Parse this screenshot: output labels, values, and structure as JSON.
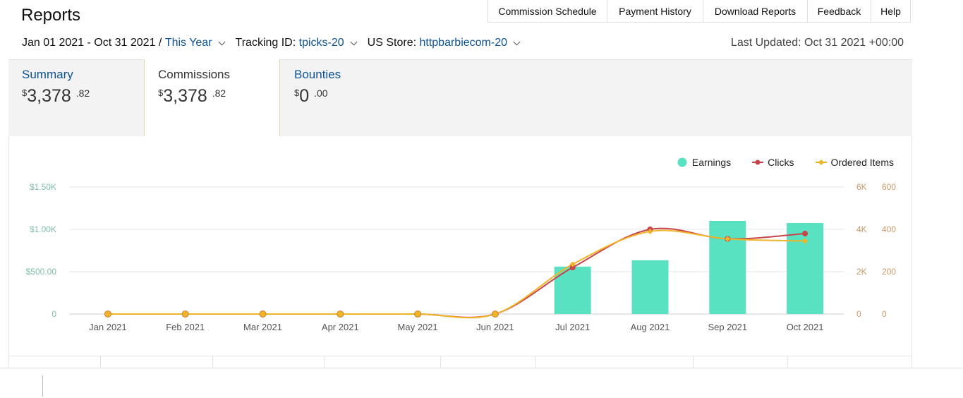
{
  "header": {
    "title": "Reports",
    "tabs": [
      "Commission Schedule",
      "Payment History",
      "Download Reports",
      "Feedback",
      "Help"
    ]
  },
  "filters": {
    "date_range": "Jan 01 2021 - Oct 31 2021 /",
    "period": "This Year",
    "tracking_label": "Tracking ID:",
    "tracking_id": "tpicks-20",
    "store_label": "US Store:",
    "store": "httpbarbiecom-20",
    "last_updated": "Last Updated: Oct 31 2021 +00:00"
  },
  "cards": [
    {
      "label": "Summary",
      "currency": "$",
      "whole": "3,378",
      "cents": ".82"
    },
    {
      "label": "Commissions",
      "currency": "$",
      "whole": "3,378",
      "cents": ".82"
    },
    {
      "label": "Bounties",
      "currency": "$",
      "whole": "0",
      "cents": ".00"
    }
  ],
  "legend": {
    "earnings": "Earnings",
    "clicks": "Clicks",
    "ordered": "Ordered Items"
  },
  "colors": {
    "earnings": "#58e2c2",
    "clicks": "#c9444a",
    "ordered": "#f0b429",
    "link": "#0b5394"
  },
  "chart_data": {
    "type": "bar",
    "categories": [
      "Jan 2021",
      "Feb 2021",
      "Mar 2021",
      "Apr 2021",
      "May 2021",
      "Jun 2021",
      "Jul 2021",
      "Aug 2021",
      "Sep 2021",
      "Oct 2021"
    ],
    "series": [
      {
        "name": "Earnings",
        "type": "bar",
        "axis": "left",
        "values": [
          0,
          0,
          0,
          0,
          0,
          0,
          560,
          635,
          1100,
          1075
        ]
      },
      {
        "name": "Clicks",
        "type": "line",
        "axis": "right-1",
        "values": [
          0,
          0,
          0,
          0,
          0,
          0,
          2200,
          4000,
          3550,
          3800
        ]
      },
      {
        "name": "Ordered Items",
        "type": "line",
        "axis": "right-2",
        "values": [
          0,
          0,
          0,
          0,
          0,
          0,
          235,
          390,
          355,
          345
        ]
      }
    ],
    "y_left": {
      "ticks": [
        "0",
        "$500.00",
        "$1.00K",
        "$1.50K"
      ],
      "range": [
        0,
        1500
      ]
    },
    "y_right1": {
      "ticks": [
        "0",
        "2K",
        "4K",
        "6K"
      ],
      "range": [
        0,
        6000
      ]
    },
    "y_right2": {
      "ticks": [
        "0",
        "200",
        "400",
        "600"
      ],
      "range": [
        0,
        600
      ]
    },
    "grid": true,
    "legend_position": "top-right"
  }
}
